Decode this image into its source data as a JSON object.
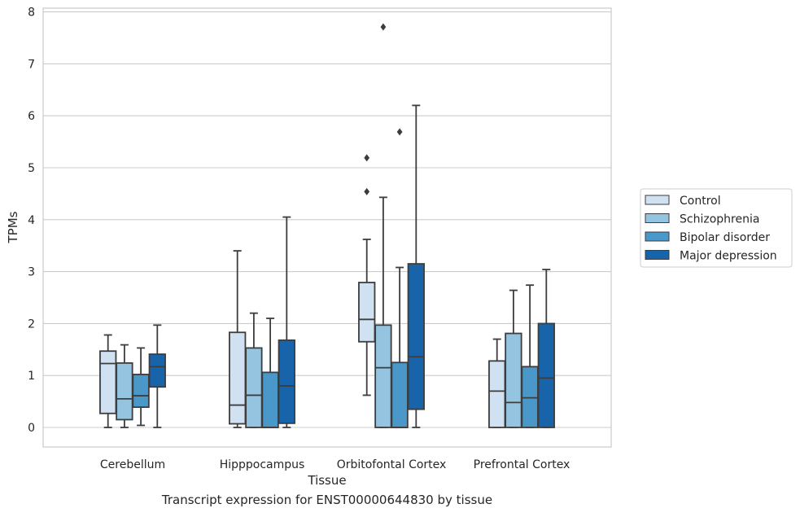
{
  "caption": "Transcript expression for ENST00000644830 by tissue",
  "chart_data": {
    "type": "box",
    "title": "",
    "xlabel": "Tissue",
    "ylabel": "TPMs",
    "ylim": [
      -0.37,
      8.08
    ],
    "yticks": [
      0,
      1,
      2,
      3,
      4,
      5,
      6,
      7,
      8
    ],
    "grid": "horizontal",
    "legend_position": "right",
    "categories": [
      "Cerebellum",
      "Hipppocampus",
      "Orbitofontal Cortex",
      "Prefrontal Cortex"
    ],
    "series": [
      {
        "name": "Control",
        "color": "#d0e1f2",
        "boxes": [
          {
            "min": 0.0,
            "q1": 0.27,
            "median": 1.23,
            "q3": 1.47,
            "max": 1.78,
            "outliers": []
          },
          {
            "min": 0.0,
            "q1": 0.07,
            "median": 0.43,
            "q3": 1.83,
            "max": 3.4,
            "outliers": []
          },
          {
            "min": 0.62,
            "q1": 1.65,
            "median": 2.08,
            "q3": 2.79,
            "max": 3.62,
            "outliers": [
              4.54,
              5.19
            ]
          },
          {
            "min": 0.0,
            "q1": 0.0,
            "median": 0.7,
            "q3": 1.28,
            "max": 1.7,
            "outliers": []
          }
        ]
      },
      {
        "name": "Schizophrenia",
        "color": "#94c4df",
        "boxes": [
          {
            "min": 0.0,
            "q1": 0.15,
            "median": 0.55,
            "q3": 1.24,
            "max": 1.59,
            "outliers": []
          },
          {
            "min": 0.0,
            "q1": 0.0,
            "median": 0.62,
            "q3": 1.53,
            "max": 2.2,
            "outliers": []
          },
          {
            "min": 0.0,
            "q1": 0.0,
            "median": 1.15,
            "q3": 1.97,
            "max": 4.43,
            "outliers": [
              7.71
            ]
          },
          {
            "min": 0.0,
            "q1": 0.0,
            "median": 0.48,
            "q3": 1.81,
            "max": 2.64,
            "outliers": []
          }
        ]
      },
      {
        "name": "Bipolar disorder",
        "color": "#4a98c9",
        "boxes": [
          {
            "min": 0.04,
            "q1": 0.39,
            "median": 0.61,
            "q3": 1.02,
            "max": 1.53,
            "outliers": []
          },
          {
            "min": 0.0,
            "q1": 0.0,
            "median": 0.0,
            "q3": 1.06,
            "max": 2.1,
            "outliers": []
          },
          {
            "min": 0.0,
            "q1": 0.0,
            "median": 0.0,
            "q3": 1.25,
            "max": 3.08,
            "outliers": [
              5.69
            ]
          },
          {
            "min": 0.0,
            "q1": 0.0,
            "median": 0.57,
            "q3": 1.17,
            "max": 2.74,
            "outliers": []
          }
        ]
      },
      {
        "name": "Major depression",
        "color": "#1764ab",
        "boxes": [
          {
            "min": 0.0,
            "q1": 0.78,
            "median": 1.17,
            "q3": 1.41,
            "max": 1.97,
            "outliers": []
          },
          {
            "min": 0.0,
            "q1": 0.08,
            "median": 0.8,
            "q3": 1.68,
            "max": 4.05,
            "outliers": []
          },
          {
            "min": 0.0,
            "q1": 0.35,
            "median": 1.36,
            "q3": 3.15,
            "max": 6.2,
            "outliers": []
          },
          {
            "min": 0.0,
            "q1": 0.0,
            "median": 0.95,
            "q3": 2.0,
            "max": 3.04,
            "outliers": []
          }
        ]
      }
    ]
  }
}
